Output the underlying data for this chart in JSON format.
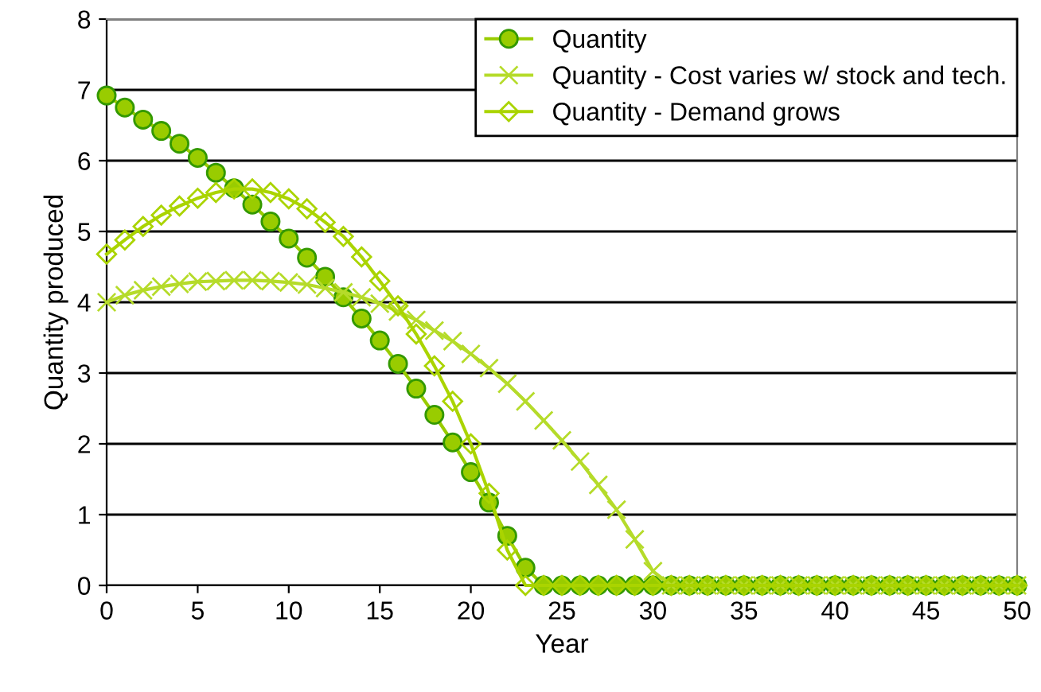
{
  "chart_data": {
    "type": "line",
    "xlabel": "Year",
    "ylabel": "Quantity produced",
    "x": [
      0,
      1,
      2,
      3,
      4,
      5,
      6,
      7,
      8,
      9,
      10,
      11,
      12,
      13,
      14,
      15,
      16,
      17,
      18,
      19,
      20,
      21,
      22,
      23,
      24,
      25,
      26,
      27,
      28,
      29,
      30,
      31,
      32,
      33,
      34,
      35,
      36,
      37,
      38,
      39,
      40,
      41,
      42,
      43,
      44,
      45,
      46,
      47,
      48,
      49,
      50
    ],
    "series": [
      {
        "name": "Quantity",
        "color": "#99cc00",
        "marker": "circle",
        "values": [
          6.92,
          6.75,
          6.58,
          6.42,
          6.24,
          6.04,
          5.83,
          5.61,
          5.38,
          5.14,
          4.9,
          4.63,
          4.36,
          4.07,
          3.77,
          3.46,
          3.13,
          2.78,
          2.41,
          2.02,
          1.6,
          1.17,
          0.7,
          0.25,
          0,
          0,
          0,
          0,
          0,
          0,
          0,
          0,
          0,
          0,
          0,
          0,
          0,
          0,
          0,
          0,
          0,
          0,
          0,
          0,
          0,
          0,
          0,
          0,
          0,
          0,
          0
        ]
      },
      {
        "name": "Quantity - Cost varies w/ stock and tech.",
        "color": "#b5db2a",
        "marker": "cross",
        "values": [
          4.0,
          4.1,
          4.17,
          4.22,
          4.26,
          4.29,
          4.3,
          4.31,
          4.31,
          4.3,
          4.28,
          4.25,
          4.2,
          4.14,
          4.07,
          3.98,
          3.87,
          3.75,
          3.6,
          3.45,
          3.27,
          3.07,
          2.85,
          2.6,
          2.33,
          2.05,
          1.75,
          1.42,
          1.07,
          0.65,
          0.2,
          0,
          0,
          0,
          0,
          0,
          0,
          0,
          0,
          0,
          0,
          0,
          0,
          0,
          0,
          0,
          0,
          0,
          0,
          0,
          0
        ]
      },
      {
        "name": "Quantity - Demand grows",
        "color": "#aad400",
        "marker": "diamond",
        "values": [
          4.68,
          4.88,
          5.07,
          5.23,
          5.36,
          5.47,
          5.55,
          5.6,
          5.6,
          5.55,
          5.46,
          5.32,
          5.13,
          4.93,
          4.64,
          4.3,
          3.95,
          3.55,
          3.1,
          2.6,
          2.0,
          1.3,
          0.5,
          0,
          0,
          0,
          0,
          0,
          0,
          0,
          0,
          0,
          0,
          0,
          0,
          0,
          0,
          0,
          0,
          0,
          0,
          0,
          0,
          0,
          0,
          0,
          0,
          0,
          0,
          0,
          0
        ]
      }
    ],
    "xlim": [
      0,
      50
    ],
    "xticks": [
      0,
      5,
      10,
      15,
      20,
      25,
      30,
      35,
      40,
      45,
      50
    ],
    "ylim": [
      0,
      8
    ],
    "yticks": [
      0,
      1,
      2,
      3,
      4,
      5,
      6,
      7,
      8
    ],
    "grid": "y",
    "legend": "top right"
  }
}
